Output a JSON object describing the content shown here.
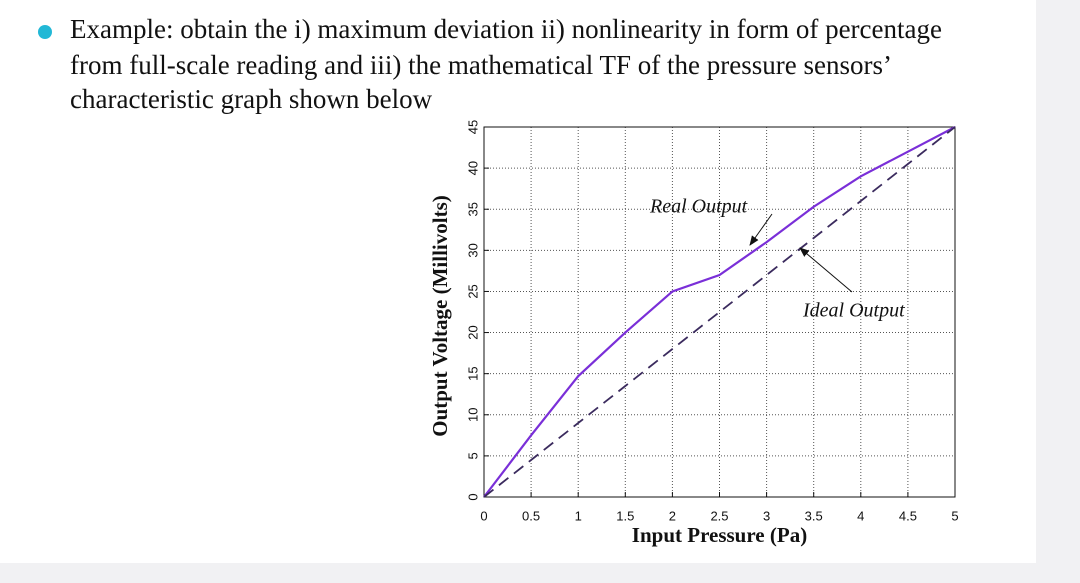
{
  "bullet_lines": [
    "Example: obtain the i) maximum deviation ii) nonlinearity in form of percentage",
    "from full-scale reading and iii) the mathematical TF of the pressure sensors’",
    "characteristic graph shown below"
  ],
  "chart_data": {
    "type": "line",
    "x_label": "Input Pressure (Pa)",
    "y_label": "Output Voltage (Millivolts)",
    "x": [
      0,
      0.5,
      1,
      1.5,
      2,
      2.5,
      3,
      3.5,
      4,
      4.5,
      5
    ],
    "series": [
      {
        "name": "Real Output",
        "color": "#7a2fd8",
        "dash": false,
        "values": [
          0,
          7.5,
          14.7,
          20,
          25,
          27,
          31,
          35.3,
          39,
          42,
          45
        ]
      },
      {
        "name": "Ideal Output",
        "color": "#3b2b5e",
        "dash": true,
        "values": [
          0,
          4.5,
          9,
          13.5,
          18,
          22.5,
          27,
          31.5,
          36,
          40.5,
          45
        ]
      }
    ],
    "xlim": [
      0,
      5
    ],
    "ylim": [
      0,
      45
    ],
    "xticks": [
      0,
      0.5,
      1,
      1.5,
      2,
      2.5,
      3,
      3.5,
      4,
      4.5,
      5
    ],
    "yticks": [
      0,
      5,
      10,
      15,
      20,
      25,
      30,
      35,
      40,
      45
    ],
    "grid": true
  }
}
